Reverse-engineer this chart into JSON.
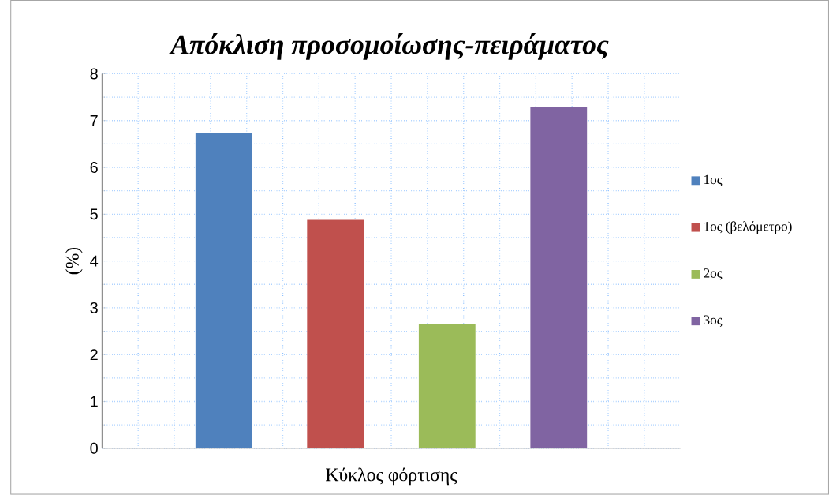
{
  "chart_data": {
    "type": "bar",
    "title": "Απόκλιση προσομοίωσης-πειράματος",
    "xlabel": "Κύκλος φόρτισης",
    "ylabel": "(%)",
    "categories": [
      null
    ],
    "series": [
      {
        "name": "1ος",
        "color": "#4f81bd",
        "values": [
          6.73
        ]
      },
      {
        "name": "1ος (βελόμετρο)",
        "color": "#c0504d",
        "values": [
          4.88
        ]
      },
      {
        "name": "2ος",
        "color": "#9bbb59",
        "values": [
          2.66
        ]
      },
      {
        "name": "3ος",
        "color": "#8064a2",
        "values": [
          7.3
        ]
      }
    ],
    "ylim": [
      0,
      8
    ],
    "yticks": [
      0,
      1,
      2,
      3,
      4,
      5,
      6,
      7,
      8
    ],
    "grid": true,
    "legend": "right"
  }
}
